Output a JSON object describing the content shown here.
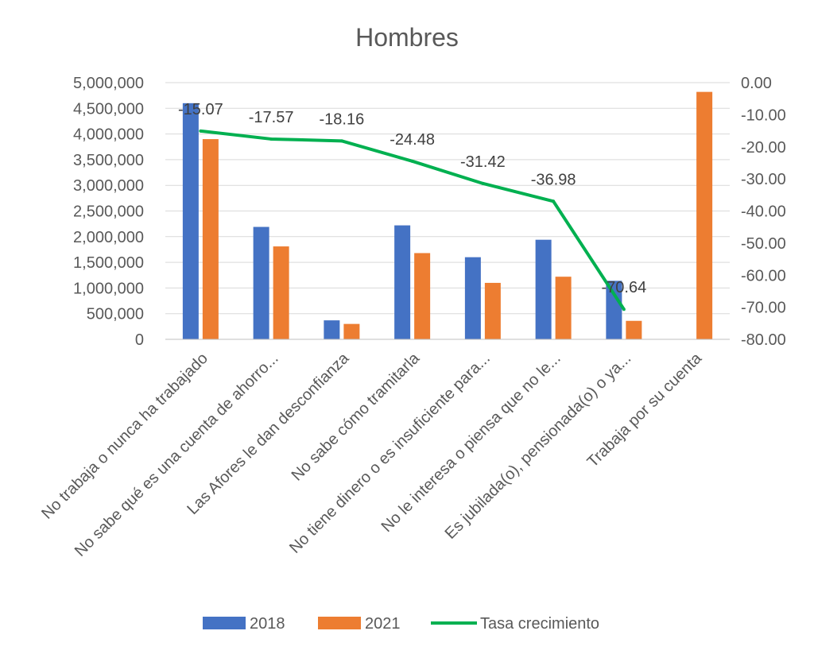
{
  "chart_data": {
    "type": "bar",
    "title": "Hombres",
    "categories": [
      "No trabaja o nunca ha trabajado",
      "No sabe qué es una cuenta de ahorro...",
      "Las Afores le dan desconfianza",
      "No sabe cómo tramitarla",
      "No tiene dinero o es insuficiente para...",
      "No le interesa o piensa que no le...",
      "Es jubilada(o), pensionada(o) o ya...",
      "Trabaja por su cuenta"
    ],
    "series": [
      {
        "name": "2018",
        "type": "bar",
        "axis": "left",
        "color": "#4472C4",
        "values": [
          4600000,
          2190000,
          370000,
          2220000,
          1600000,
          1940000,
          1140000,
          0
        ]
      },
      {
        "name": "2021",
        "type": "bar",
        "axis": "left",
        "color": "#ED7D31",
        "values": [
          3900000,
          1810000,
          300000,
          1680000,
          1100000,
          1220000,
          360000,
          4820000
        ]
      },
      {
        "name": "Tasa crecimiento",
        "type": "line",
        "axis": "right",
        "color": "#00B050",
        "values": [
          -15.07,
          -17.57,
          -18.16,
          -24.48,
          -31.42,
          -36.98,
          -70.64,
          null
        ],
        "labels": [
          "-15.07",
          "-17.57",
          "-18.16",
          "-24.48",
          "-31.42",
          "-36.98",
          "-70.64",
          ""
        ]
      }
    ],
    "y_left": {
      "min": 0,
      "max": 5000000,
      "step": 500000,
      "ticks": [
        "0",
        "500,000",
        "1,000,000",
        "1,500,000",
        "2,000,000",
        "2,500,000",
        "3,000,000",
        "3,500,000",
        "4,000,000",
        "4,500,000",
        "5,000,000"
      ]
    },
    "y_right": {
      "min": -80,
      "max": 0,
      "step": 10,
      "ticks": [
        "-80.00",
        "-70.00",
        "-60.00",
        "-50.00",
        "-40.00",
        "-30.00",
        "-20.00",
        "-10.00",
        "0.00"
      ]
    },
    "grid": true,
    "legend_position": "bottom"
  },
  "colors": {
    "grid": "#d9d9d9",
    "text": "#595959"
  }
}
